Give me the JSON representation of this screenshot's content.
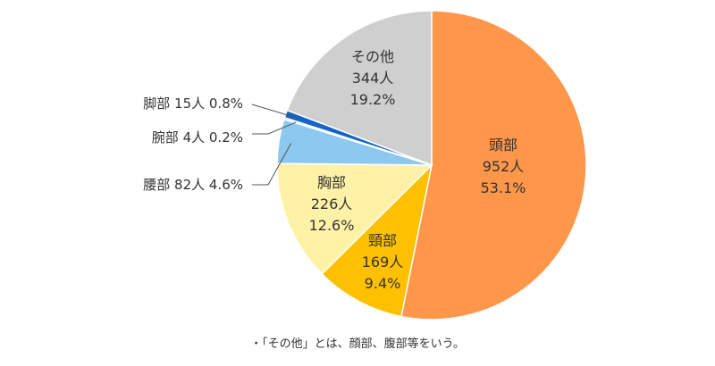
{
  "chart_data": {
    "type": "pie",
    "title": "",
    "start": "top, clockwise",
    "slices": [
      {
        "name": "頭部",
        "count_label": "952人",
        "pct_label": "53.1%",
        "value": 53.1,
        "color": "#FF974A",
        "label_placement": "inside"
      },
      {
        "name": "頸部",
        "count_label": "169人",
        "pct_label": "9.4%",
        "value": 9.4,
        "color": "#FFC000",
        "label_placement": "inside"
      },
      {
        "name": "胸部",
        "count_label": "226人",
        "pct_label": "12.6%",
        "value": 12.6,
        "color": "#FFF2A6",
        "label_placement": "inside"
      },
      {
        "name": "腰部",
        "count_label": "82人",
        "pct_label": "4.6%",
        "value": 4.6,
        "color": "#8CC8F0",
        "label_placement": "outside"
      },
      {
        "name": "腕部",
        "count_label": "4人",
        "pct_label": "0.2%",
        "value": 0.2,
        "color": "#ADD8F2",
        "label_placement": "outside"
      },
      {
        "name": "脚部",
        "count_label": "15人",
        "pct_label": "0.8%",
        "value": 0.8,
        "color": "#1565C8",
        "label_placement": "outside"
      },
      {
        "name": "その他",
        "count_label": "344人",
        "pct_label": "19.2%",
        "value": 19.2,
        "color": "#CFCFCF",
        "label_placement": "inside"
      }
    ]
  },
  "footnote": "・「その他」とは、顔部、腹部等をいう。"
}
